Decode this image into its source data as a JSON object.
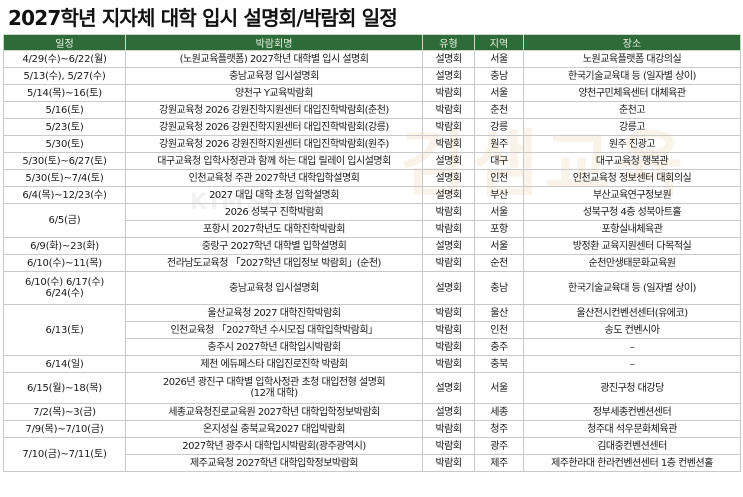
{
  "title": "2027학년 지자체 대학 입시 설명회/박람회 일정",
  "headers": {
    "date": "일정",
    "event": "박람회명",
    "type": "유형",
    "region": "지역",
    "venue": "장소"
  },
  "watermark": {
    "logo_text": "김샘교육",
    "sub_text": "KIMSAEM"
  },
  "rows": [
    {
      "date": "4/29(수)~6/22(월)",
      "event": "(노원교육플랫폼) 2027학년 대학별 입시 설명회",
      "type": "설명회",
      "region": "서울",
      "venue": "노원교육플랫폼 대강의실"
    },
    {
      "date": "5/13(수), 5/27(수)",
      "event": "충남교육청 입시설명회",
      "type": "설명회",
      "region": "충남",
      "venue": "한국기술교육대 등 (일자별 상이)"
    },
    {
      "date": "5/14(목)~16(토)",
      "event": "양천구 Y교육박람회",
      "type": "박람회",
      "region": "서울",
      "venue": "양천구민체육센터 대체육관"
    },
    {
      "date": "5/16(토)",
      "event": "강원교육청 2026 강원진학지원센터 대입진학박람회(춘천)",
      "type": "박람회",
      "region": "춘천",
      "venue": "춘천고"
    },
    {
      "date": "5/23(토)",
      "event": "강원교육청 2026 강원진학지원센터 대입진학박람회(강릉)",
      "type": "박람회",
      "region": "강릉",
      "venue": "강릉고"
    },
    {
      "date": "5/30(토)",
      "event": "강원교육청 2026 강원진학지원센터 대입진학박람회(원주)",
      "type": "박람회",
      "region": "원주",
      "venue": "원주 진광고"
    },
    {
      "date": "5/30(토)~6/27(토)",
      "event": "대구교육청 입학사정관과 함께 하는 대입 릴레이 입시설명회",
      "type": "설명회",
      "region": "대구",
      "venue": "대구교육청 행복관"
    },
    {
      "date": "5/30(토)~7/4(토)",
      "event": "인천교육청 주관 2027학년 대학입학설명회",
      "type": "설명회",
      "region": "인천",
      "venue": "인천교육청 정보센터 대회의실"
    },
    {
      "date": "6/4(목)~12/23(수)",
      "event": "2027 대입 대학 초청 입학설명회",
      "type": "설명회",
      "region": "부산",
      "venue": "부산교육연구정보원"
    },
    {
      "date": "6/5(금)",
      "event": "2026 성북구 진학박람회",
      "type": "박람회",
      "region": "서울",
      "venue": "성북구청 4층 성북아트홀"
    },
    {
      "date": "",
      "event": "포항시 2027학년도 대학진학박람회",
      "type": "박람회",
      "region": "포항",
      "venue": "포항실내체육관"
    },
    {
      "date": "6/9(화)~23(화)",
      "event": "중랑구 2027학년 대학별 입학설명회",
      "type": "설명회",
      "region": "서울",
      "venue": "방정환 교육지원센터 다목적실"
    },
    {
      "date": "6/10(수)~11(목)",
      "event": "전라남도교육청 「2027학년 대입정보 박람회」(순천)",
      "type": "박람회",
      "region": "순천",
      "venue": "순천만생태문화교육원"
    },
    {
      "date": "6/10(수) 6/17(수) 6/24(수)",
      "event": "충남교육청 입시설명회",
      "type": "설명회",
      "region": "충남",
      "venue": "한국기술교육대 등 (일자별 상이)"
    },
    {
      "date": "6/13(토)",
      "event": "울산교육청 2027 대학진학박람회",
      "type": "박람회",
      "region": "울산",
      "venue": "울산전시컨벤션센터(유에코)"
    },
    {
      "date": "",
      "event": "인천교육청 「2027학년 수시모집 대학입학박람회」",
      "type": "박람회",
      "region": "인천",
      "venue": "송도 컨벤시아"
    },
    {
      "date": "",
      "event": "충주시 2027학년 대학입시박람회",
      "type": "박람회",
      "region": "충주",
      "venue": "–"
    },
    {
      "date": "6/14(일)",
      "event": "제천 에듀페스타 대입진로진학 박람회",
      "type": "박람회",
      "region": "충북",
      "venue": "–"
    },
    {
      "date": "6/15(월)~18(목)",
      "event": "2026년 광진구 대학별 입학사정관 초청 대입전형 설명회 (12개 대학)",
      "type": "설명회",
      "region": "서울",
      "venue": "광진구청 대강당"
    },
    {
      "date": "7/2(목)~3(금)",
      "event": "세종교육청진로교육원 2027학년 대학입학정보박람회",
      "type": "설명회",
      "region": "세종",
      "venue": "정부세종컨벤션센터"
    },
    {
      "date": "7/9(목)~7/10(금)",
      "event": "온지성실 충북교육2027 대입박람회",
      "type": "박람회",
      "region": "청주",
      "venue": "청주대 석우문화체육관"
    },
    {
      "date": "7/10(금)~7/11(토)",
      "event": "2027학년 광주시 대학입시박람회(광주광역시)",
      "type": "박람회",
      "region": "광주",
      "venue": "김대중컨벤션센터"
    },
    {
      "date": "",
      "event": "제주교육청 2027학년 대학입학정보박람회",
      "type": "박람회",
      "region": "제주",
      "venue": "제주한라대 한라컨벤션센터 1층 컨벤션홀"
    }
  ]
}
